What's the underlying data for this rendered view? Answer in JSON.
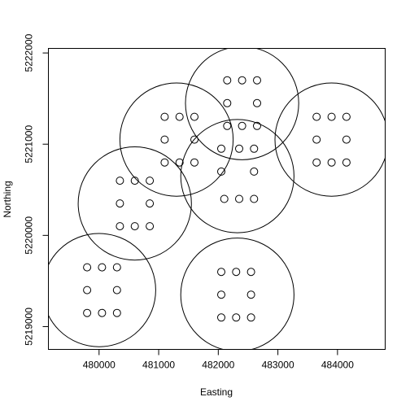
{
  "chart_data": {
    "type": "scatter",
    "xlabel": "Easting",
    "ylabel": "Northing",
    "xlim": [
      479150,
      484800
    ],
    "ylim": [
      5218750,
      5222050
    ],
    "x_ticks": [
      480000,
      481000,
      482000,
      483000,
      484000
    ],
    "y_ticks": [
      5219000,
      5220000,
      5221000,
      5222000
    ],
    "grid": false,
    "circles": [
      {
        "x": 480000,
        "y": 5219400,
        "r": 950
      },
      {
        "x": 480600,
        "y": 5220350,
        "r": 950
      },
      {
        "x": 481300,
        "y": 5221050,
        "r": 950
      },
      {
        "x": 482400,
        "y": 5221450,
        "r": 950
      },
      {
        "x": 482320,
        "y": 5220650,
        "r": 950
      },
      {
        "x": 483900,
        "y": 5221050,
        "r": 950
      },
      {
        "x": 482320,
        "y": 5219350,
        "r": 950
      }
    ],
    "points": [
      {
        "x": 479800,
        "y": 5219650
      },
      {
        "x": 480050,
        "y": 5219650
      },
      {
        "x": 480300,
        "y": 5219650
      },
      {
        "x": 479800,
        "y": 5219400
      },
      {
        "x": 480300,
        "y": 5219400
      },
      {
        "x": 479800,
        "y": 5219150
      },
      {
        "x": 480050,
        "y": 5219150
      },
      {
        "x": 480300,
        "y": 5219150
      },
      {
        "x": 480350,
        "y": 5220600
      },
      {
        "x": 480600,
        "y": 5220600
      },
      {
        "x": 480850,
        "y": 5220600
      },
      {
        "x": 480350,
        "y": 5220350
      },
      {
        "x": 480850,
        "y": 5220350
      },
      {
        "x": 480350,
        "y": 5220100
      },
      {
        "x": 480600,
        "y": 5220100
      },
      {
        "x": 480850,
        "y": 5220100
      },
      {
        "x": 481100,
        "y": 5221300
      },
      {
        "x": 481350,
        "y": 5221300
      },
      {
        "x": 481600,
        "y": 5221300
      },
      {
        "x": 481100,
        "y": 5221050
      },
      {
        "x": 481600,
        "y": 5221050
      },
      {
        "x": 481100,
        "y": 5220800
      },
      {
        "x": 481350,
        "y": 5220800
      },
      {
        "x": 481600,
        "y": 5220800
      },
      {
        "x": 482150,
        "y": 5221700
      },
      {
        "x": 482400,
        "y": 5221700
      },
      {
        "x": 482650,
        "y": 5221700
      },
      {
        "x": 482150,
        "y": 5221450
      },
      {
        "x": 482650,
        "y": 5221450
      },
      {
        "x": 482150,
        "y": 5221200
      },
      {
        "x": 482400,
        "y": 5221200
      },
      {
        "x": 482650,
        "y": 5221200
      },
      {
        "x": 482050,
        "y": 5220950
      },
      {
        "x": 482350,
        "y": 5220950
      },
      {
        "x": 482600,
        "y": 5220950
      },
      {
        "x": 482050,
        "y": 5220700
      },
      {
        "x": 482600,
        "y": 5220700
      },
      {
        "x": 482100,
        "y": 5220400
      },
      {
        "x": 482350,
        "y": 5220400
      },
      {
        "x": 482600,
        "y": 5220400
      },
      {
        "x": 483650,
        "y": 5221300
      },
      {
        "x": 483900,
        "y": 5221300
      },
      {
        "x": 484150,
        "y": 5221300
      },
      {
        "x": 483650,
        "y": 5221050
      },
      {
        "x": 484150,
        "y": 5221050
      },
      {
        "x": 483650,
        "y": 5220800
      },
      {
        "x": 483900,
        "y": 5220800
      },
      {
        "x": 484150,
        "y": 5220800
      },
      {
        "x": 482050,
        "y": 5219600
      },
      {
        "x": 482300,
        "y": 5219600
      },
      {
        "x": 482550,
        "y": 5219600
      },
      {
        "x": 482050,
        "y": 5219350
      },
      {
        "x": 482550,
        "y": 5219350
      },
      {
        "x": 482050,
        "y": 5219100
      },
      {
        "x": 482300,
        "y": 5219100
      },
      {
        "x": 482550,
        "y": 5219100
      }
    ]
  }
}
